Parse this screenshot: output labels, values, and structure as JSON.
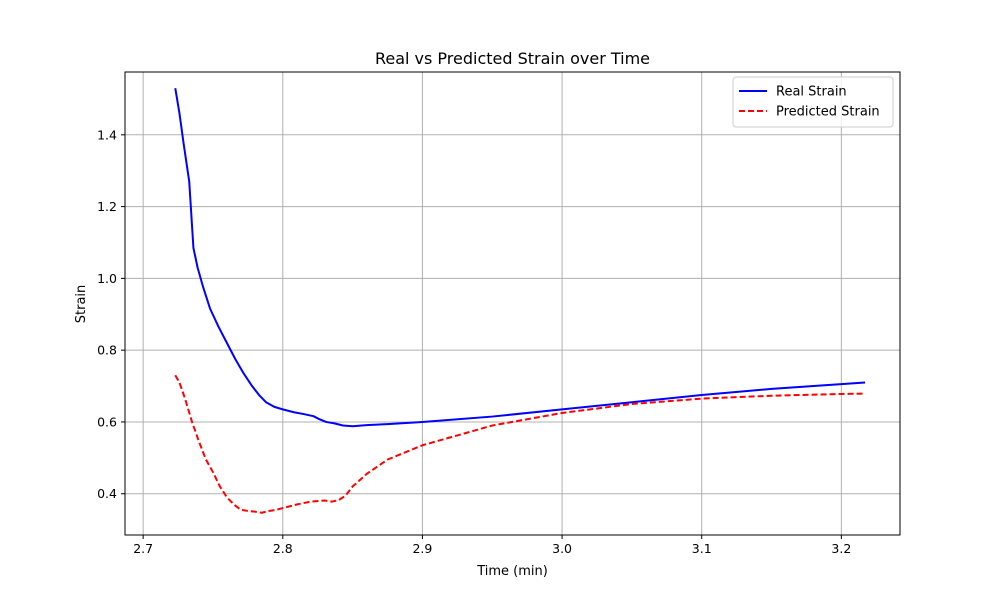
{
  "chart_data": {
    "type": "line",
    "title": "Real vs Predicted Strain over Time",
    "xlabel": "Time (min)",
    "ylabel": "Strain",
    "xlim": [
      2.687,
      3.242
    ],
    "ylim": [
      0.285,
      1.575
    ],
    "xticks": [
      2.7,
      2.8,
      2.9,
      3.0,
      3.1,
      3.2
    ],
    "yticks": [
      0.4,
      0.6,
      0.8,
      1.0,
      1.2,
      1.4
    ],
    "xtick_labels": [
      "2.7",
      "2.8",
      "2.9",
      "3.0",
      "3.1",
      "3.2"
    ],
    "ytick_labels": [
      "0.4",
      "0.6",
      "0.8",
      "1.0",
      "1.2",
      "1.4"
    ],
    "grid": true,
    "legend_position": "upper right",
    "series": [
      {
        "name": "Real Strain",
        "color": "#0000ff",
        "style": "solid",
        "x": [
          2.723,
          2.726,
          2.729,
          2.733,
          2.736,
          2.739,
          2.743,
          2.748,
          2.754,
          2.76,
          2.766,
          2.772,
          2.778,
          2.783,
          2.788,
          2.794,
          2.8,
          2.808,
          2.815,
          2.822,
          2.826,
          2.831,
          2.837,
          2.843,
          2.85,
          2.86,
          2.875,
          2.9,
          2.95,
          3.0,
          3.05,
          3.1,
          3.15,
          3.217
        ],
        "y": [
          1.53,
          1.46,
          1.375,
          1.27,
          1.085,
          1.03,
          0.975,
          0.915,
          0.865,
          0.82,
          0.775,
          0.735,
          0.7,
          0.675,
          0.655,
          0.642,
          0.635,
          0.627,
          0.622,
          0.616,
          0.608,
          0.6,
          0.596,
          0.59,
          0.588,
          0.591,
          0.594,
          0.6,
          0.615,
          0.635,
          0.655,
          0.675,
          0.692,
          0.71
        ]
      },
      {
        "name": "Predicted Strain",
        "color": "#ff0000",
        "style": "dashed",
        "x": [
          2.723,
          2.726,
          2.73,
          2.735,
          2.74,
          2.745,
          2.75,
          2.755,
          2.76,
          2.765,
          2.77,
          2.775,
          2.78,
          2.785,
          2.79,
          2.795,
          2.8,
          2.81,
          2.82,
          2.83,
          2.835,
          2.84,
          2.845,
          2.85,
          2.86,
          2.875,
          2.9,
          2.95,
          3.0,
          3.05,
          3.1,
          3.15,
          3.2,
          3.217
        ],
        "y": [
          0.73,
          0.71,
          0.665,
          0.6,
          0.545,
          0.495,
          0.46,
          0.42,
          0.39,
          0.37,
          0.355,
          0.352,
          0.35,
          0.347,
          0.352,
          0.355,
          0.36,
          0.37,
          0.378,
          0.381,
          0.378,
          0.382,
          0.395,
          0.42,
          0.455,
          0.495,
          0.535,
          0.59,
          0.625,
          0.65,
          0.665,
          0.673,
          0.678,
          0.679
        ]
      }
    ]
  }
}
